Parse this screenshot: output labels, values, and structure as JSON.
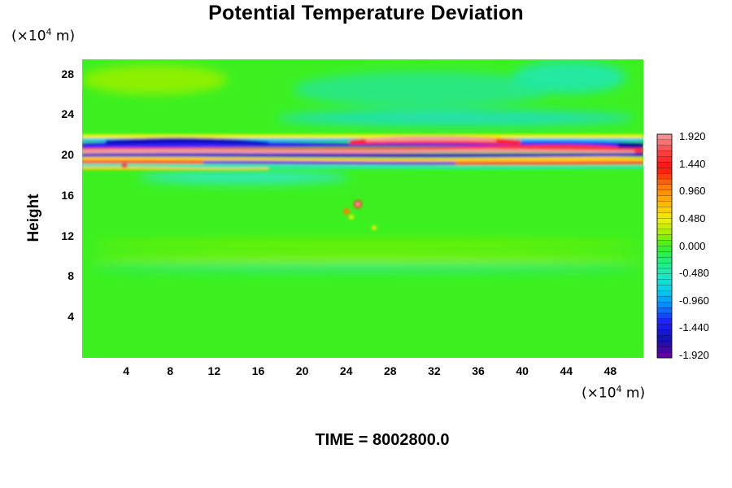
{
  "chart_data": {
    "type": "heatmap",
    "title": "Potential Temperature Deviation",
    "ylabel": "Height",
    "xlabel": "",
    "x_unit": "(×10⁴ m)",
    "y_unit": "(×10⁴ m)",
    "x_ticks": [
      "4",
      "8",
      "12",
      "16",
      "20",
      "24",
      "28",
      "32",
      "36",
      "40",
      "44",
      "48"
    ],
    "y_ticks": [
      "4",
      "8",
      "12",
      "16",
      "20",
      "24",
      "28"
    ],
    "xlim": [
      0,
      51
    ],
    "ylim": [
      0,
      29.5
    ],
    "colorbar": {
      "labels": [
        "1.920",
        "1.440",
        "0.960",
        "0.480",
        "0.000",
        "-0.480",
        "-0.960",
        "-1.440",
        "-1.920"
      ],
      "range": [
        -1.92,
        1.92
      ]
    },
    "footer": "TIME = 8002800.0"
  }
}
